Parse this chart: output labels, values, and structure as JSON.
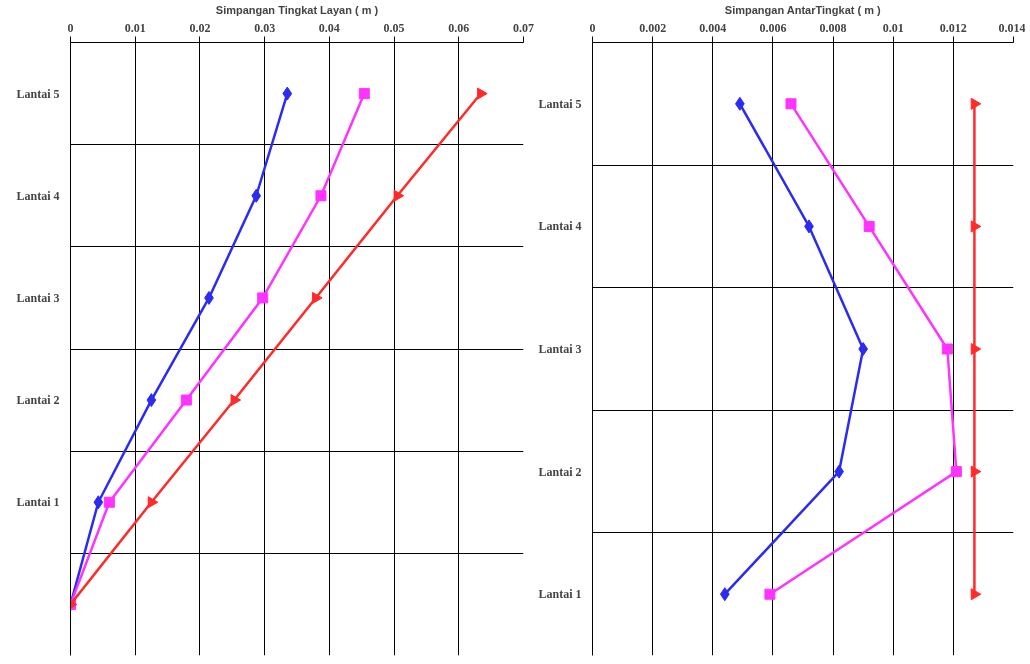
{
  "chart_data": [
    {
      "type": "line",
      "orientation": "horizontal",
      "xlabel": "Simpangan Tingkat Layan ( m )",
      "categories": [
        "Lantai 5",
        "Lantai 4",
        "Lantai 3",
        "Lantai 2",
        "Lantai 1",
        null
      ],
      "xlim": [
        0,
        0.07
      ],
      "xticks": [
        0,
        0.01,
        0.02,
        0.03,
        0.04,
        0.05,
        0.06,
        0.07
      ],
      "grid": true,
      "series": [
        {
          "color": "#2b2bf2",
          "marker": "diamond",
          "values": [
            0.0335,
            0.0287,
            0.0214,
            0.0125,
            0.0043,
            0
          ]
        },
        {
          "color": "#ff33ff",
          "marker": "square",
          "values": [
            0.0454,
            0.0387,
            0.0297,
            0.0179,
            0.006,
            0
          ]
        },
        {
          "color": "#ff2a2a",
          "marker": "triangle",
          "values": [
            0.0634,
            0.0505,
            0.0379,
            0.0253,
            0.0125,
            0
          ]
        }
      ]
    },
    {
      "type": "line",
      "orientation": "horizontal",
      "xlabel": "Simpangan AntarTingkat ( m )",
      "categories": [
        "Lantai 5",
        "Lantai 4",
        "Lantai 3",
        "Lantai 2",
        "Lantai 1"
      ],
      "xlim": [
        0,
        0.014
      ],
      "xticks": [
        0,
        0.002,
        0.004,
        0.006,
        0.008,
        0.01,
        0.012,
        0.014
      ],
      "grid": true,
      "series": [
        {
          "color": "#2b2bf2",
          "marker": "diamond",
          "values": [
            0.0049,
            0.0072,
            0.009,
            0.0082,
            0.0044
          ]
        },
        {
          "color": "#ff33ff",
          "marker": "square",
          "values": [
            0.0066,
            0.0092,
            0.0118,
            0.0121,
            0.0059
          ]
        },
        {
          "color": "#ff2a2a",
          "marker": "triangle",
          "values": [
            0.0127,
            0.0127,
            0.0127,
            0.0127,
            0.0127
          ]
        }
      ]
    }
  ]
}
